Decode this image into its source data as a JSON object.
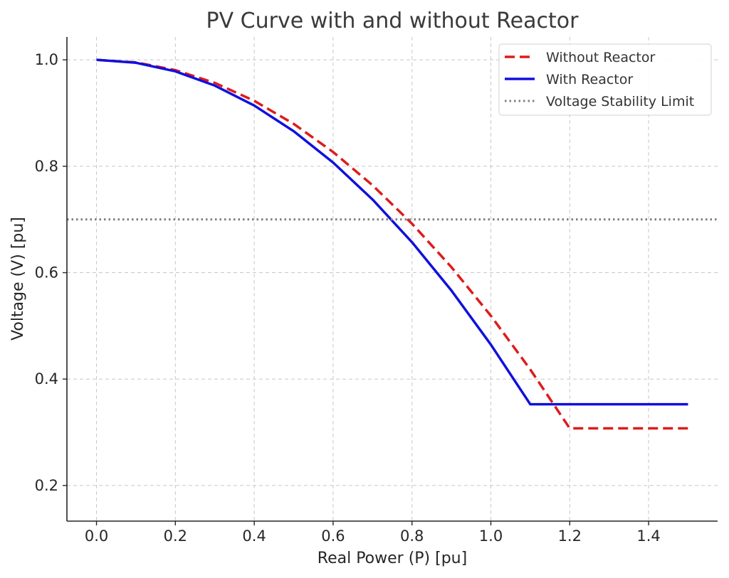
{
  "chart_data": {
    "type": "line",
    "title": "PV Curve with and without Reactor",
    "xlabel": "Real Power (P) [pu]",
    "ylabel": "Voltage (V) [pu]",
    "xlim": [
      -0.075,
      1.575
    ],
    "ylim": [
      0.133,
      1.043
    ],
    "xticks": [
      0.0,
      0.2,
      0.4,
      0.6,
      0.8,
      1.0,
      1.2,
      1.4
    ],
    "xtick_labels": [
      "0.0",
      "0.2",
      "0.4",
      "0.6",
      "0.8",
      "1.0",
      "1.2",
      "1.4"
    ],
    "yticks": [
      0.2,
      0.4,
      0.6,
      0.8,
      1.0
    ],
    "ytick_labels": [
      "0.2",
      "0.4",
      "0.6",
      "0.8",
      "1.0"
    ],
    "grid": true,
    "legend_position": "top-right",
    "series": [
      {
        "name": "Without Reactor",
        "color": "#dd1c1c",
        "style": "dashed",
        "x": [
          0.0,
          0.1,
          0.2,
          0.3,
          0.4,
          0.5,
          0.6,
          0.7,
          0.8,
          0.9,
          1.0,
          1.1,
          1.2,
          1.3,
          1.4,
          1.5
        ],
        "y": [
          1.0,
          0.9952,
          0.9807,
          0.9567,
          0.923,
          0.8797,
          0.8268,
          0.7643,
          0.6921,
          0.6104,
          0.519,
          0.418,
          0.3074,
          0.3074,
          0.3074,
          0.3074
        ]
      },
      {
        "name": "With Reactor",
        "color": "#1010dd",
        "style": "solid",
        "x": [
          0.0,
          0.1,
          0.2,
          0.3,
          0.4,
          0.5,
          0.6,
          0.7,
          0.8,
          0.9,
          1.0,
          1.1,
          1.2,
          1.3,
          1.4,
          1.5
        ],
        "y": [
          1.0,
          0.9945,
          0.9784,
          0.9516,
          0.9141,
          0.8659,
          0.807,
          0.7375,
          0.6573,
          0.5664,
          0.4648,
          0.3526,
          0.3526,
          0.3526,
          0.3526,
          0.3526
        ]
      },
      {
        "name": "Voltage Stability Limit",
        "color": "#808080",
        "style": "dotted",
        "type": "hline",
        "y": 0.7
      }
    ]
  }
}
